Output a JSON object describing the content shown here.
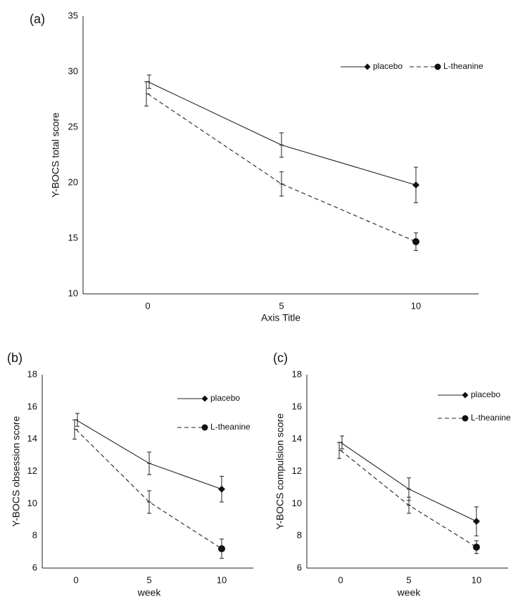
{
  "chart_data": [
    {
      "type": "line",
      "panel_label": "(a)",
      "xlabel": "Axis Title",
      "ylabel": "Y-BOCS total score",
      "ylim": [
        10,
        35
      ],
      "yticks": [
        10,
        15,
        20,
        25,
        30,
        35
      ],
      "x": [
        0,
        5,
        10
      ],
      "xticks": [
        "0",
        "5",
        "10"
      ],
      "legend_position": "top-right",
      "series": [
        {
          "name": "placebo",
          "marker": "diamond",
          "dash": "solid",
          "values": [
            29.1,
            23.4,
            19.8
          ],
          "err": [
            0.6,
            1.1,
            1.6
          ]
        },
        {
          "name": "L-theanine",
          "marker": "circle",
          "dash": "dashed",
          "values": [
            28.0,
            19.9,
            14.7
          ],
          "err": [
            1.1,
            1.1,
            0.8
          ]
        }
      ]
    },
    {
      "type": "line",
      "panel_label": "(b)",
      "xlabel": "week",
      "ylabel": "Y-BOCS obsession score",
      "ylim": [
        6,
        18
      ],
      "yticks": [
        6,
        8,
        10,
        12,
        14,
        16,
        18
      ],
      "x": [
        0,
        5,
        10
      ],
      "xticks": [
        "0",
        "5",
        "10"
      ],
      "legend_position": "top-right",
      "series": [
        {
          "name": "placebo",
          "marker": "diamond",
          "dash": "solid",
          "values": [
            15.2,
            12.5,
            10.9
          ],
          "err": [
            0.4,
            0.7,
            0.8
          ]
        },
        {
          "name": "L-theanine",
          "marker": "circle",
          "dash": "dashed",
          "values": [
            14.6,
            10.1,
            7.2
          ],
          "err": [
            0.6,
            0.7,
            0.6
          ]
        }
      ]
    },
    {
      "type": "line",
      "panel_label": "(c)",
      "xlabel": "week",
      "ylabel": "Y-BOCS compulsion score",
      "ylim": [
        6,
        18
      ],
      "yticks": [
        6,
        8,
        10,
        12,
        14,
        16,
        18
      ],
      "x": [
        0,
        5,
        10
      ],
      "xticks": [
        "0",
        "5",
        "10"
      ],
      "legend_position": "top-right",
      "series": [
        {
          "name": "placebo",
          "marker": "diamond",
          "dash": "solid",
          "values": [
            13.8,
            10.9,
            8.9
          ],
          "err": [
            0.4,
            0.7,
            0.9
          ]
        },
        {
          "name": "L-theanine",
          "marker": "circle",
          "dash": "dashed",
          "values": [
            13.3,
            9.9,
            7.3
          ],
          "err": [
            0.5,
            0.5,
            0.4
          ]
        }
      ]
    }
  ]
}
